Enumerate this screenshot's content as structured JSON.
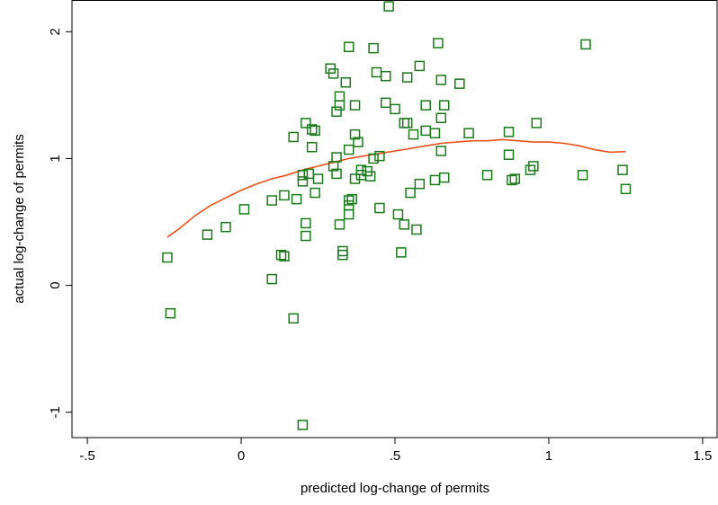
{
  "chart_data": {
    "type": "scatter",
    "xlabel": "predicted log-change of permits",
    "ylabel": "actual log-change of permits",
    "xlim": [
      -0.55,
      1.55
    ],
    "ylim": [
      -1.2,
      2.25
    ],
    "x_ticks": [
      -0.5,
      0,
      0.5,
      1,
      1.5
    ],
    "x_tick_labels": [
      "-.5",
      "0",
      ".5",
      "1",
      "1.5"
    ],
    "y_ticks": [
      -1,
      0,
      1,
      2
    ],
    "y_tick_labels": [
      "-1",
      "0",
      "1",
      "2"
    ],
    "grid": false,
    "legend": "none",
    "series": [
      {
        "kind": "scatter",
        "marker": "hollow-square",
        "color": "#1a7a1a",
        "points": [
          [
            -0.24,
            0.22
          ],
          [
            -0.23,
            -0.22
          ],
          [
            -0.11,
            0.4
          ],
          [
            -0.05,
            0.46
          ],
          [
            0.01,
            0.6
          ],
          [
            0.1,
            0.67
          ],
          [
            0.1,
            0.05
          ],
          [
            0.13,
            0.24
          ],
          [
            0.14,
            0.23
          ],
          [
            0.14,
            0.71
          ],
          [
            0.17,
            1.17
          ],
          [
            0.17,
            -0.26
          ],
          [
            0.18,
            0.68
          ],
          [
            0.2,
            0.82
          ],
          [
            0.2,
            0.87
          ],
          [
            0.2,
            -1.1
          ],
          [
            0.21,
            1.28
          ],
          [
            0.21,
            0.49
          ],
          [
            0.21,
            0.39
          ],
          [
            0.22,
            0.88
          ],
          [
            0.23,
            1.09
          ],
          [
            0.23,
            1.23
          ],
          [
            0.24,
            1.22
          ],
          [
            0.24,
            0.73
          ],
          [
            0.25,
            0.84
          ],
          [
            0.29,
            1.71
          ],
          [
            0.3,
            1.67
          ],
          [
            0.3,
            0.94
          ],
          [
            0.31,
            1.01
          ],
          [
            0.31,
            1.37
          ],
          [
            0.31,
            0.88
          ],
          [
            0.32,
            1.49
          ],
          [
            0.32,
            1.42
          ],
          [
            0.32,
            0.48
          ],
          [
            0.33,
            0.27
          ],
          [
            0.33,
            0.24
          ],
          [
            0.34,
            1.6
          ],
          [
            0.35,
            1.07
          ],
          [
            0.35,
            0.56
          ],
          [
            0.35,
            0.67
          ],
          [
            0.35,
            0.63
          ],
          [
            0.35,
            1.88
          ],
          [
            0.36,
            0.68
          ],
          [
            0.37,
            1.19
          ],
          [
            0.37,
            1.42
          ],
          [
            0.37,
            0.84
          ],
          [
            0.38,
            1.13
          ],
          [
            0.39,
            0.87
          ],
          [
            0.39,
            0.91
          ],
          [
            0.41,
            0.9
          ],
          [
            0.42,
            0.86
          ],
          [
            0.43,
            1.0
          ],
          [
            0.43,
            1.87
          ],
          [
            0.44,
            1.68
          ],
          [
            0.45,
            1.02
          ],
          [
            0.45,
            0.61
          ],
          [
            0.47,
            1.65
          ],
          [
            0.47,
            1.44
          ],
          [
            0.48,
            2.2
          ],
          [
            0.5,
            1.39
          ],
          [
            0.51,
            0.56
          ],
          [
            0.52,
            0.26
          ],
          [
            0.53,
            0.48
          ],
          [
            0.53,
            1.28
          ],
          [
            0.54,
            1.28
          ],
          [
            0.54,
            1.64
          ],
          [
            0.55,
            0.73
          ],
          [
            0.56,
            1.19
          ],
          [
            0.57,
            0.44
          ],
          [
            0.58,
            1.73
          ],
          [
            0.58,
            0.8
          ],
          [
            0.6,
            1.42
          ],
          [
            0.6,
            1.22
          ],
          [
            0.63,
            1.2
          ],
          [
            0.63,
            0.83
          ],
          [
            0.64,
            1.91
          ],
          [
            0.65,
            1.62
          ],
          [
            0.65,
            1.32
          ],
          [
            0.65,
            1.06
          ],
          [
            0.66,
            1.42
          ],
          [
            0.66,
            0.85
          ],
          [
            0.71,
            1.59
          ],
          [
            0.74,
            1.2
          ],
          [
            0.8,
            0.87
          ],
          [
            0.87,
            1.21
          ],
          [
            0.87,
            1.03
          ],
          [
            0.88,
            0.83
          ],
          [
            0.89,
            0.84
          ],
          [
            0.94,
            0.91
          ],
          [
            0.95,
            0.94
          ],
          [
            0.96,
            1.28
          ],
          [
            1.11,
            0.87
          ],
          [
            1.12,
            1.9
          ],
          [
            1.24,
            0.91
          ],
          [
            1.25,
            0.76
          ]
        ]
      },
      {
        "kind": "line",
        "color": "#e8511c",
        "points": [
          [
            -0.24,
            0.38
          ],
          [
            -0.2,
            0.45
          ],
          [
            -0.15,
            0.55
          ],
          [
            -0.1,
            0.63
          ],
          [
            -0.05,
            0.69
          ],
          [
            0.0,
            0.75
          ],
          [
            0.05,
            0.8
          ],
          [
            0.1,
            0.84
          ],
          [
            0.15,
            0.87
          ],
          [
            0.2,
            0.91
          ],
          [
            0.25,
            0.94
          ],
          [
            0.3,
            0.97
          ],
          [
            0.35,
            1.0
          ],
          [
            0.4,
            1.02
          ],
          [
            0.45,
            1.04
          ],
          [
            0.5,
            1.06
          ],
          [
            0.55,
            1.08
          ],
          [
            0.6,
            1.1
          ],
          [
            0.65,
            1.12
          ],
          [
            0.7,
            1.13
          ],
          [
            0.75,
            1.14
          ],
          [
            0.8,
            1.14
          ],
          [
            0.85,
            1.15
          ],
          [
            0.9,
            1.14
          ],
          [
            0.95,
            1.13
          ],
          [
            1.0,
            1.13
          ],
          [
            1.05,
            1.12
          ],
          [
            1.1,
            1.1
          ],
          [
            1.15,
            1.07
          ],
          [
            1.2,
            1.05
          ],
          [
            1.25,
            1.055
          ]
        ]
      }
    ]
  }
}
